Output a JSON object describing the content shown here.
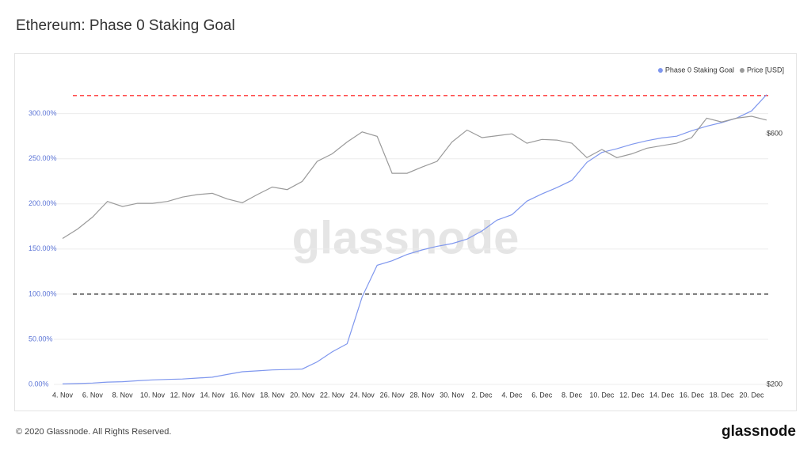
{
  "chart_data": {
    "type": "line",
    "title": "Ethereum: Phase 0 Staking Goal",
    "watermark": "glassnode",
    "copyright": "© 2020 Glassnode. All Rights Reserved.",
    "brand": "glassnode",
    "legend": "top-right",
    "grid": true,
    "categories": [
      "4. Nov",
      null,
      "6. Nov",
      null,
      "8. Nov",
      null,
      "10. Nov",
      null,
      "12. Nov",
      null,
      "14. Nov",
      null,
      "16. Nov",
      null,
      "18. Nov",
      null,
      "20. Nov",
      null,
      "22. Nov",
      null,
      "24. Nov",
      null,
      "26. Nov",
      null,
      "28. Nov",
      null,
      "30. Nov",
      null,
      "2. Dec",
      null,
      "4. Dec",
      null,
      "6. Dec",
      null,
      "8. Dec",
      null,
      "10. Dec",
      null,
      "12. Dec",
      null,
      "14. Dec",
      null,
      "16. Dec",
      null,
      "18. Dec",
      null,
      "20. Dec",
      null
    ],
    "series": [
      {
        "name": "Phase 0 Staking Goal",
        "color": "#7f97ee",
        "axis": "y",
        "values": [
          0.5,
          1,
          1.5,
          2.5,
          3,
          4,
          5,
          5.5,
          6,
          7,
          8,
          11,
          14,
          15,
          16,
          16.5,
          17,
          25,
          36,
          45,
          97,
          132,
          137,
          144,
          149,
          153,
          156,
          161,
          170,
          182,
          188,
          203,
          211,
          218,
          226,
          246,
          257,
          261,
          266,
          270,
          273,
          275,
          281,
          286,
          290,
          295,
          303,
          321
        ]
      },
      {
        "name": "Price [USD]",
        "color": "#9a9a9a",
        "axis": "y2",
        "values": [
          433,
          448,
          467,
          492,
          484,
          489,
          489,
          492,
          499,
          503,
          505,
          496,
          490,
          503,
          515,
          511,
          524,
          556,
          568,
          587,
          603,
          596,
          537,
          537,
          547,
          556,
          587,
          606,
          594,
          597,
          600,
          585,
          591,
          590,
          585,
          562,
          575,
          562,
          568,
          577,
          581,
          585,
          594,
          625,
          619,
          625,
          628,
          622
        ]
      }
    ],
    "ylim": [
      0,
      347
    ],
    "yticks": [
      {
        "value": 0,
        "label": "0.00%"
      },
      {
        "value": 50,
        "label": "50.00%"
      },
      {
        "value": 100,
        "label": "100.00%"
      },
      {
        "value": 150,
        "label": "150.00%"
      },
      {
        "value": 200,
        "label": "200.00%"
      },
      {
        "value": 250,
        "label": "250.00%"
      },
      {
        "value": 300,
        "label": "300.00%"
      }
    ],
    "y2lim": [
      200,
      700
    ],
    "y2ticks": [
      {
        "value": 200,
        "label": "$200"
      },
      {
        "value": 600,
        "label": "$600"
      }
    ],
    "reference_lines": [
      {
        "value": 320,
        "color": "#ff3333"
      },
      {
        "value": 100,
        "color": "#222222"
      }
    ]
  }
}
